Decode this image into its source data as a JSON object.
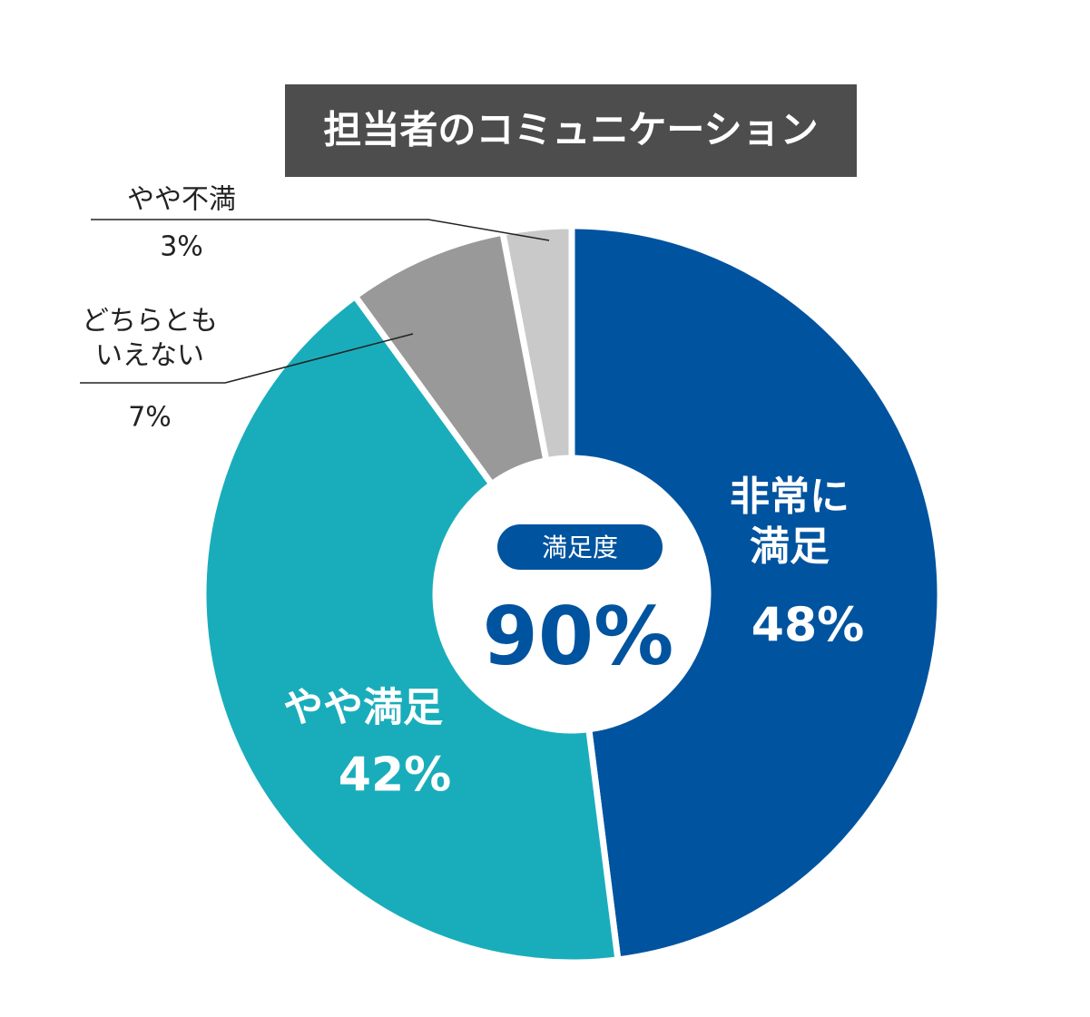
{
  "chart_data": {
    "type": "donut",
    "title": "担当者のコミュニケーション",
    "center_label": "満足度",
    "center_value": "90%",
    "categories": [
      "非常に\n満足",
      "やや満足",
      "どちらとも\nいえない",
      "やや不満"
    ],
    "values": [
      48,
      42,
      7,
      3
    ],
    "value_labels": [
      "48%",
      "42%",
      "7%",
      "3%"
    ],
    "colors": [
      "#00539f",
      "#19adbb",
      "#999999",
      "#c9c9c9"
    ]
  }
}
